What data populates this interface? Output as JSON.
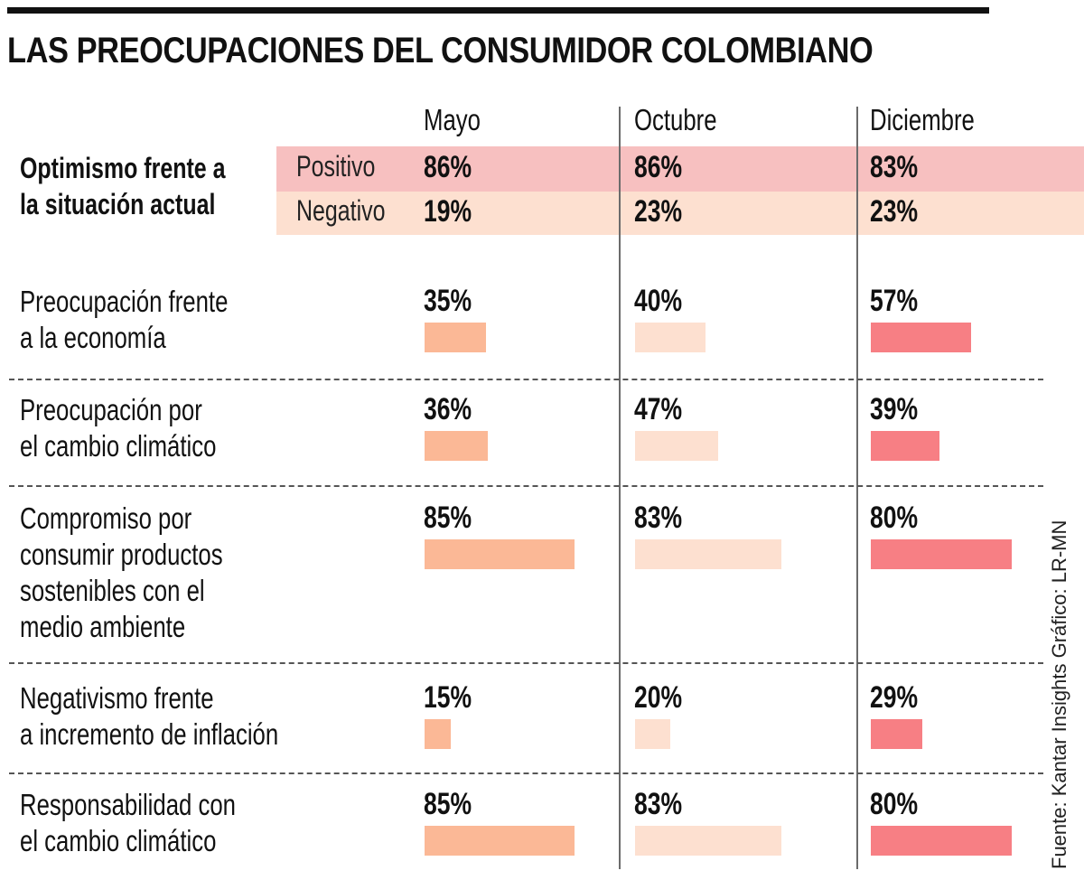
{
  "title": "LAS PREOCUPACIONES DEL CONSUMIDOR COLOMBIANO",
  "credit": "Fuente: Kantar Insights   Gráfico: LR-MN",
  "chart_data": {
    "type": "table",
    "title": "LAS PREOCUPACIONES DEL CONSUMIDOR COLOMBIANO",
    "columns": [
      "Mayo",
      "Octubre",
      "Diciembre"
    ],
    "colors": {
      "Mayo": "#fbb896",
      "Octubre": "#fde0d0",
      "Diciembre": "#f77f84",
      "positivo_band": "#f7c0c0",
      "negativo_band": "#fde0d0"
    },
    "optimism": {
      "label": "Optimismo frente a la situación actual",
      "label_lines": [
        "Optimismo frente a",
        "la situación actual"
      ],
      "rows": [
        {
          "name": "Positivo",
          "values": [
            86,
            86,
            83
          ],
          "labels": [
            "86%",
            "86%",
            "83%"
          ]
        },
        {
          "name": "Negativo",
          "values": [
            19,
            23,
            23
          ],
          "labels": [
            "19%",
            "23%",
            "23%"
          ]
        }
      ]
    },
    "metrics": [
      {
        "label_lines": [
          "Preocupación frente",
          "a la economía"
        ],
        "values": [
          35,
          40,
          57
        ],
        "labels": [
          "35%",
          "40%",
          "57%"
        ]
      },
      {
        "label_lines": [
          "Preocupación por",
          "el cambio climático"
        ],
        "values": [
          36,
          47,
          39
        ],
        "labels": [
          "36%",
          "47%",
          "39%"
        ]
      },
      {
        "label_lines": [
          "Compromiso por",
          "consumir productos",
          "sostenibles con el",
          "medio ambiente"
        ],
        "values": [
          85,
          83,
          80
        ],
        "labels": [
          "85%",
          "83%",
          "80%"
        ]
      },
      {
        "label_lines": [
          "Negativismo frente",
          "a incremento de inflación"
        ],
        "values": [
          15,
          20,
          29
        ],
        "labels": [
          "15%",
          "20%",
          "29%"
        ]
      },
      {
        "label_lines": [
          "Responsabilidad con",
          "el cambio climático"
        ],
        "values": [
          85,
          83,
          80
        ],
        "labels": [
          "85%",
          "83%",
          "80%"
        ]
      }
    ],
    "bar_scale_max": 100
  }
}
